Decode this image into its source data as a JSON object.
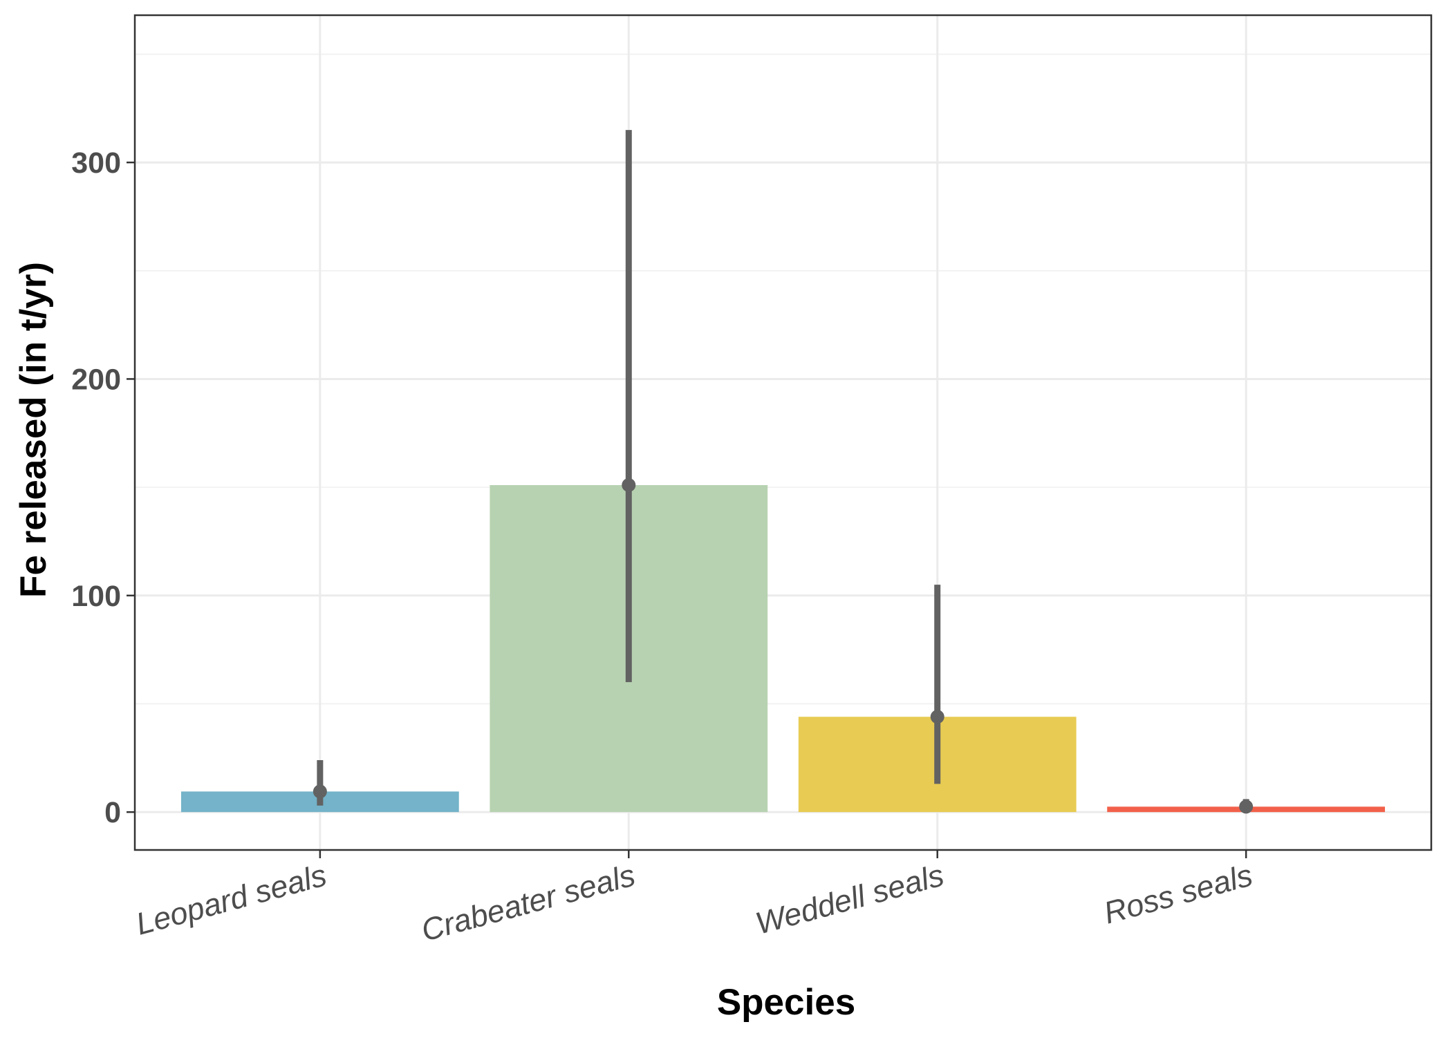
{
  "chart_data": {
    "type": "bar",
    "title": "",
    "xlabel": "Species",
    "ylabel": "Fe released (in t/yr)",
    "categories": [
      "Leopard seals",
      "Crabeater seals",
      "Weddell seals",
      "Ross seals"
    ],
    "values": [
      9.5,
      151,
      44,
      2.5
    ],
    "error_low": [
      3,
      60,
      13,
      0.5
    ],
    "error_high": [
      24,
      315,
      105,
      6
    ],
    "colors": [
      "#74b3c9",
      "#b7d2b1",
      "#e8cb52",
      "#f2604a"
    ],
    "error_color": "#626262",
    "yticks": [
      0,
      100,
      200,
      300
    ],
    "ylim": [
      -17.5,
      368
    ],
    "grid": true,
    "legend": "none"
  }
}
